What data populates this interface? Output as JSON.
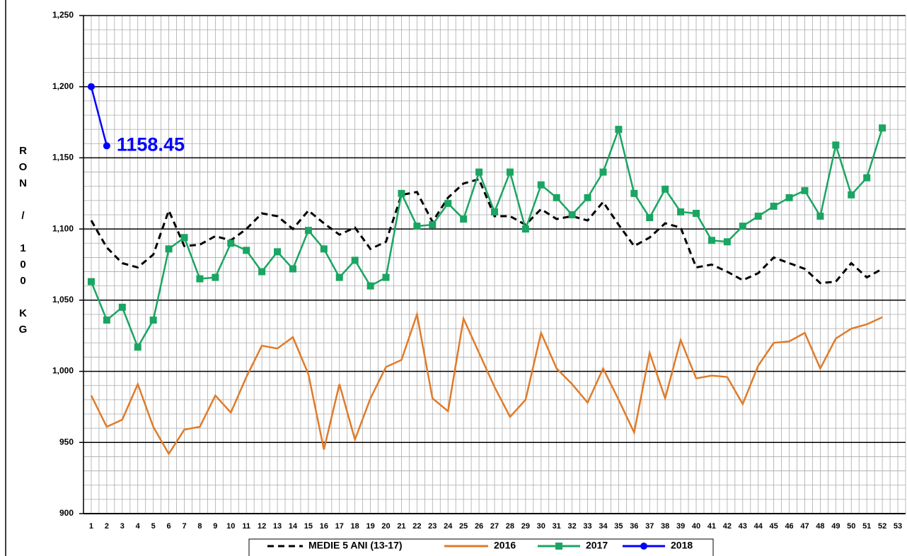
{
  "chart_data": {
    "type": "line",
    "y_label": "RON / 100 KG",
    "categories": [
      1,
      2,
      3,
      4,
      5,
      6,
      7,
      8,
      9,
      10,
      11,
      12,
      13,
      14,
      15,
      16,
      17,
      18,
      19,
      20,
      21,
      22,
      23,
      24,
      25,
      26,
      27,
      28,
      29,
      30,
      31,
      32,
      33,
      34,
      35,
      36,
      37,
      38,
      39,
      40,
      41,
      42,
      43,
      44,
      45,
      46,
      47,
      48,
      49,
      50,
      51,
      52,
      53
    ],
    "series": [
      {
        "name": "MEDIE 5 ANI (13-17)",
        "color": "#000000",
        "dash": "dashed",
        "marker": "none",
        "values": [
          1106,
          1087,
          1076,
          1073,
          1082,
          1113,
          1088,
          1089,
          1095,
          1092,
          1100,
          1111,
          1109,
          1100,
          1113,
          1104,
          1096,
          1101,
          1086,
          1091,
          1124,
          1126,
          1105,
          1122,
          1132,
          1135,
          1109,
          1109,
          1103,
          1114,
          1107,
          1109,
          1106,
          1119,
          1103,
          1088,
          1094,
          1104,
          1101,
          1073,
          1075,
          1070,
          1064,
          1069,
          1080,
          1076,
          1072,
          1062,
          1063,
          1076,
          1066,
          1072,
          null
        ]
      },
      {
        "name": "2016",
        "color": "#e07b29",
        "dash": "solid",
        "marker": "none",
        "values": [
          983,
          961,
          966,
          991,
          961,
          942,
          959,
          961,
          983,
          971,
          996,
          1018,
          1016,
          1024,
          998,
          945,
          991,
          952,
          981,
          1003,
          1008,
          1040,
          981,
          972,
          1037,
          1013,
          989,
          968,
          980,
          1027,
          1002,
          991,
          978,
          1002,
          980,
          957,
          1013,
          981,
          1022,
          995,
          997,
          996,
          977,
          1004,
          1020,
          1021,
          1027,
          1002,
          1023,
          1030,
          1033,
          1038,
          null
        ]
      },
      {
        "name": "2017",
        "color": "#1aa562",
        "dash": "solid",
        "marker": "square",
        "values": [
          1063,
          1036,
          1045,
          1017,
          1036,
          1086,
          1094,
          1065,
          1066,
          1090,
          1085,
          1070,
          1084,
          1072,
          1099,
          1086,
          1066,
          1078,
          1060,
          1066,
          1125,
          1102,
          1103,
          1118,
          1107,
          1140,
          1112,
          1140,
          1100,
          1131,
          1122,
          1110,
          1122,
          1140,
          1170,
          1125,
          1108,
          1128,
          1112,
          1111,
          1092,
          1091,
          1102,
          1109,
          1116,
          1122,
          1127,
          1109,
          1159,
          1124,
          1136,
          1171,
          null
        ]
      },
      {
        "name": "2018",
        "color": "#0000ff",
        "dash": "solid",
        "marker": "circle",
        "values": [
          1200,
          1158.45,
          null,
          null,
          null,
          null,
          null,
          null,
          null,
          null,
          null,
          null,
          null,
          null,
          null,
          null,
          null,
          null,
          null,
          null,
          null,
          null,
          null,
          null,
          null,
          null,
          null,
          null,
          null,
          null,
          null,
          null,
          null,
          null,
          null,
          null,
          null,
          null,
          null,
          null,
          null,
          null,
          null,
          null,
          null,
          null,
          null,
          null,
          null,
          null,
          null,
          null,
          null
        ],
        "value_labels": [
          null,
          "1158.45",
          null,
          null,
          null,
          null,
          null,
          null,
          null,
          null,
          null,
          null,
          null,
          null,
          null,
          null,
          null,
          null,
          null,
          null,
          null,
          null,
          null,
          null,
          null,
          null,
          null,
          null,
          null,
          null,
          null,
          null,
          null,
          null,
          null,
          null,
          null,
          null,
          null,
          null,
          null,
          null,
          null,
          null,
          null,
          null,
          null,
          null,
          null,
          null,
          null,
          null,
          null
        ]
      }
    ],
    "ylim": [
      900,
      1250
    ],
    "yticks": [
      {
        "value": 900,
        "label": "900"
      },
      {
        "value": 950,
        "label": "950"
      },
      {
        "value": 1000,
        "label": "1,000"
      },
      {
        "value": 1050,
        "label": "1,050"
      },
      {
        "value": 1100,
        "label": "1,100"
      },
      {
        "value": 1150,
        "label": "1,150"
      },
      {
        "value": 1200,
        "label": "1,200"
      },
      {
        "value": 1250,
        "label": "1,250"
      }
    ],
    "grid": true,
    "legend": "bottom"
  }
}
